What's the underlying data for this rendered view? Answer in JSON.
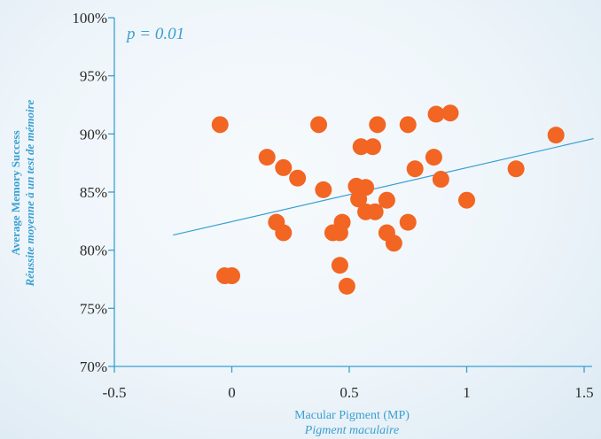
{
  "chart_data": {
    "type": "scatter",
    "annotation": "p = 0.01",
    "xlabel": "Macular Pigment (MP)",
    "xlabel_secondary": "Pigment maculaire",
    "ylabel": "Average Memory Success",
    "ylabel_secondary": "Réussite moyenne à un test de mémoire",
    "xlim": [
      -0.5,
      1.5
    ],
    "ylim": [
      70,
      100
    ],
    "x_ticks": [
      {
        "value": -0.5,
        "label": "-0.5"
      },
      {
        "value": 0,
        "label": "0"
      },
      {
        "value": 0.5,
        "label": "0.5"
      },
      {
        "value": 1,
        "label": "1"
      },
      {
        "value": 1.5,
        "label": "1.5"
      }
    ],
    "y_ticks": [
      {
        "value": 70,
        "label": "70%"
      },
      {
        "value": 75,
        "label": "75%"
      },
      {
        "value": 80,
        "label": "80%"
      },
      {
        "value": 85,
        "label": "85%"
      },
      {
        "value": 90,
        "label": "90%"
      },
      {
        "value": 95,
        "label": "95%"
      },
      {
        "value": 100,
        "label": "100%"
      }
    ],
    "points": [
      {
        "x": -0.05,
        "y": 90.8
      },
      {
        "x": -0.03,
        "y": 77.8
      },
      {
        "x": 0.0,
        "y": 77.8
      },
      {
        "x": 0.15,
        "y": 88.0
      },
      {
        "x": 0.19,
        "y": 82.4
      },
      {
        "x": 0.22,
        "y": 81.5
      },
      {
        "x": 0.22,
        "y": 87.1
      },
      {
        "x": 0.28,
        "y": 86.2
      },
      {
        "x": 0.37,
        "y": 90.8
      },
      {
        "x": 0.39,
        "y": 85.2
      },
      {
        "x": 0.43,
        "y": 81.5
      },
      {
        "x": 0.46,
        "y": 81.5
      },
      {
        "x": 0.47,
        "y": 82.4
      },
      {
        "x": 0.46,
        "y": 78.7
      },
      {
        "x": 0.49,
        "y": 76.9
      },
      {
        "x": 0.53,
        "y": 85.5
      },
      {
        "x": 0.54,
        "y": 84.4
      },
      {
        "x": 0.55,
        "y": 88.9
      },
      {
        "x": 0.57,
        "y": 85.4
      },
      {
        "x": 0.57,
        "y": 83.3
      },
      {
        "x": 0.6,
        "y": 88.9
      },
      {
        "x": 0.61,
        "y": 83.3
      },
      {
        "x": 0.62,
        "y": 90.8
      },
      {
        "x": 0.66,
        "y": 84.3
      },
      {
        "x": 0.66,
        "y": 81.5
      },
      {
        "x": 0.69,
        "y": 80.6
      },
      {
        "x": 0.75,
        "y": 82.4
      },
      {
        "x": 0.75,
        "y": 90.8
      },
      {
        "x": 0.78,
        "y": 87.0
      },
      {
        "x": 0.86,
        "y": 88.0
      },
      {
        "x": 0.87,
        "y": 91.7
      },
      {
        "x": 0.89,
        "y": 86.1
      },
      {
        "x": 0.93,
        "y": 91.8
      },
      {
        "x": 1.0,
        "y": 84.3
      },
      {
        "x": 1.21,
        "y": 87.0
      },
      {
        "x": 1.38,
        "y": 89.9
      }
    ],
    "trendline": {
      "x": [
        -0.25,
        1.54
      ],
      "y": [
        81.3,
        89.6
      ]
    },
    "grid": false,
    "legend": "none",
    "colors": {
      "points": "#f26522",
      "axes": "#3a9fd0",
      "labels": "#3a9fd0",
      "ticks": "#2a2a2a"
    }
  }
}
